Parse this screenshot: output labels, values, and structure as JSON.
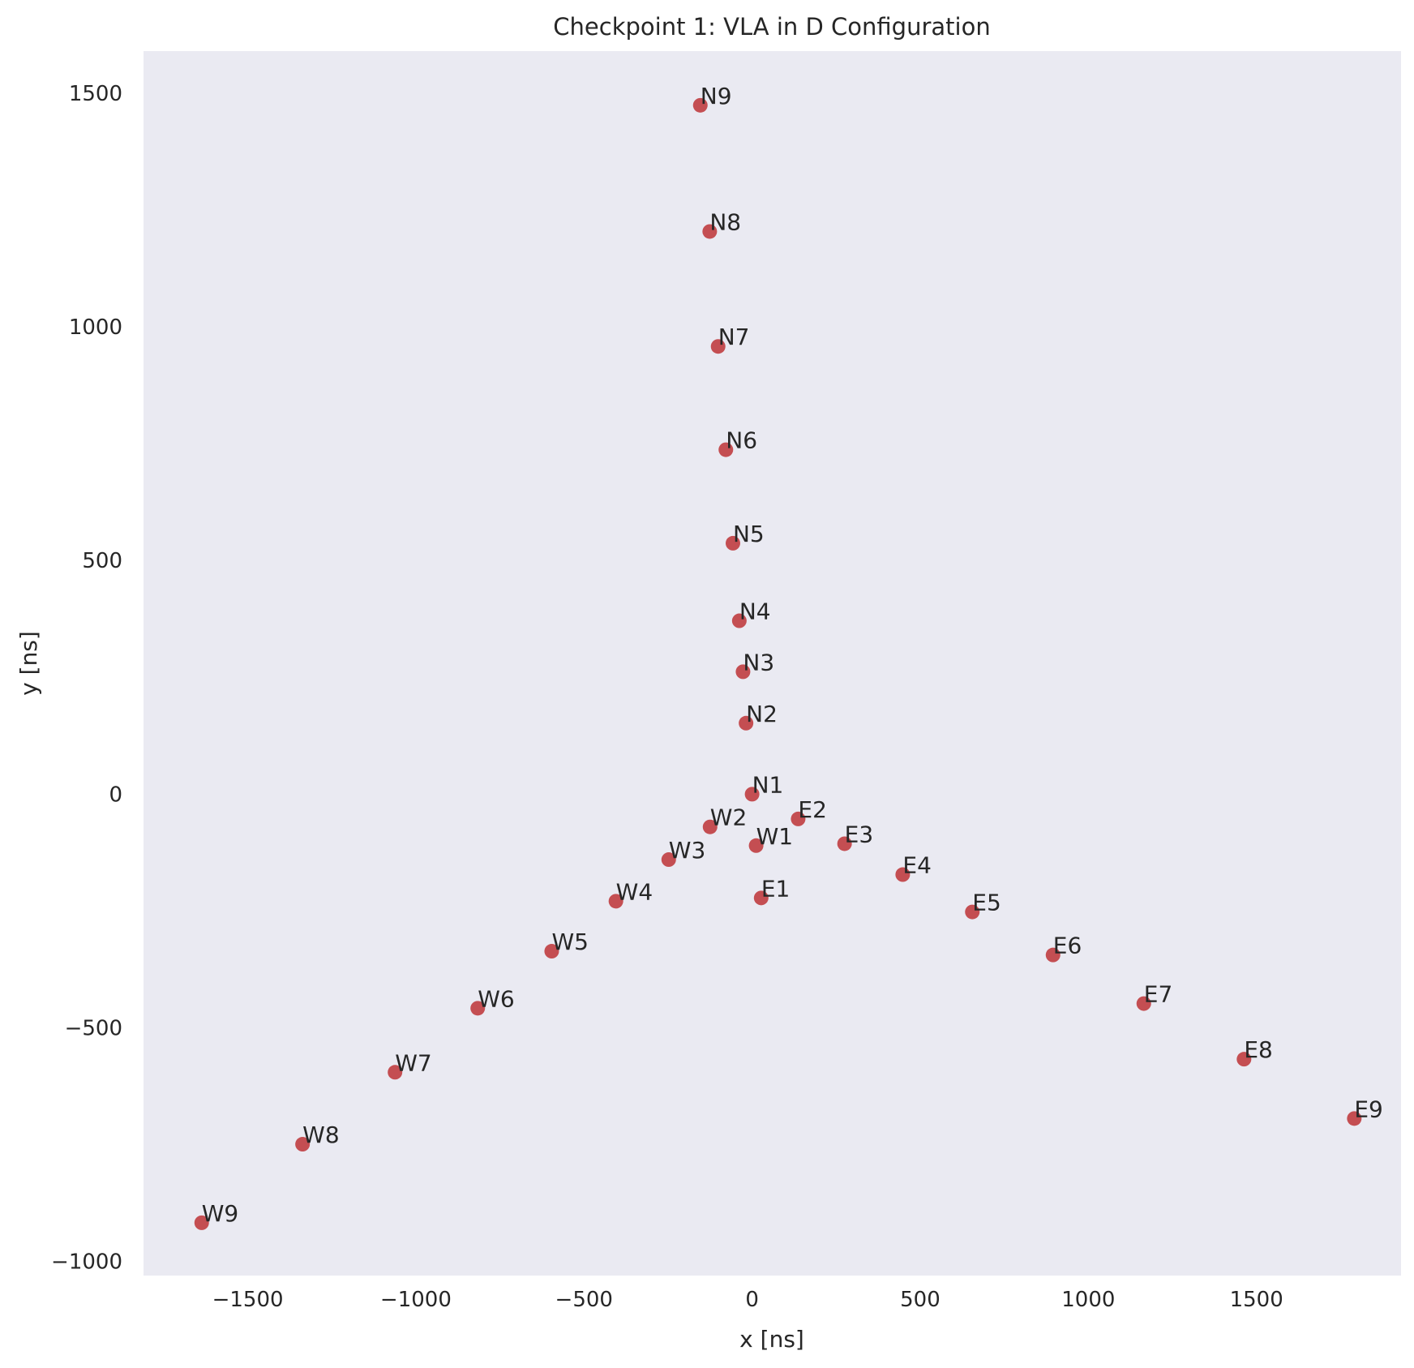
{
  "chart_data": {
    "type": "scatter",
    "title": "Checkpoint 1: VLA in D Configuration",
    "xlabel": "x [ns]",
    "ylabel": "y [ns]",
    "xlim": [
      -1810,
      1930
    ],
    "ylim": [
      -1030,
      1590
    ],
    "xticks": [
      -1500,
      -1000,
      -500,
      0,
      500,
      1000,
      1500
    ],
    "yticks": [
      -1000,
      -500,
      0,
      500,
      1000,
      1500
    ],
    "xtick_labels": [
      "−1500",
      "−1000",
      "−500",
      "0",
      "500",
      "1000",
      "1500"
    ],
    "ytick_labels": [
      "−1000",
      "−500",
      "0",
      "500",
      "1000",
      "1500"
    ],
    "grid": false,
    "background": "#eaeaf2",
    "marker_color": "#c44e52",
    "points": [
      {
        "label": "N1",
        "x": 0,
        "y": 0
      },
      {
        "label": "N2",
        "x": -18,
        "y": 152
      },
      {
        "label": "N3",
        "x": -27,
        "y": 262
      },
      {
        "label": "N4",
        "x": -38,
        "y": 371
      },
      {
        "label": "N5",
        "x": -57,
        "y": 537
      },
      {
        "label": "N6",
        "x": -78,
        "y": 737
      },
      {
        "label": "N7",
        "x": -101,
        "y": 958
      },
      {
        "label": "N8",
        "x": -126,
        "y": 1204
      },
      {
        "label": "N9",
        "x": -154,
        "y": 1474
      },
      {
        "label": "W1",
        "x": 12,
        "y": -110
      },
      {
        "label": "W2",
        "x": -125,
        "y": -70
      },
      {
        "label": "W3",
        "x": -248,
        "y": -140
      },
      {
        "label": "W4",
        "x": -405,
        "y": -229
      },
      {
        "label": "W5",
        "x": -596,
        "y": -336
      },
      {
        "label": "W6",
        "x": -816,
        "y": -458
      },
      {
        "label": "W7",
        "x": -1062,
        "y": -595
      },
      {
        "label": "W8",
        "x": -1337,
        "y": -749
      },
      {
        "label": "W9",
        "x": -1637,
        "y": -917
      },
      {
        "label": "E1",
        "x": 27,
        "y": -222
      },
      {
        "label": "E2",
        "x": 137,
        "y": -53
      },
      {
        "label": "E3",
        "x": 275,
        "y": -106
      },
      {
        "label": "E4",
        "x": 448,
        "y": -172
      },
      {
        "label": "E5",
        "x": 655,
        "y": -252
      },
      {
        "label": "E6",
        "x": 895,
        "y": -344
      },
      {
        "label": "E7",
        "x": 1165,
        "y": -448
      },
      {
        "label": "E8",
        "x": 1463,
        "y": -567
      },
      {
        "label": "E9",
        "x": 1791,
        "y": -694
      }
    ]
  }
}
